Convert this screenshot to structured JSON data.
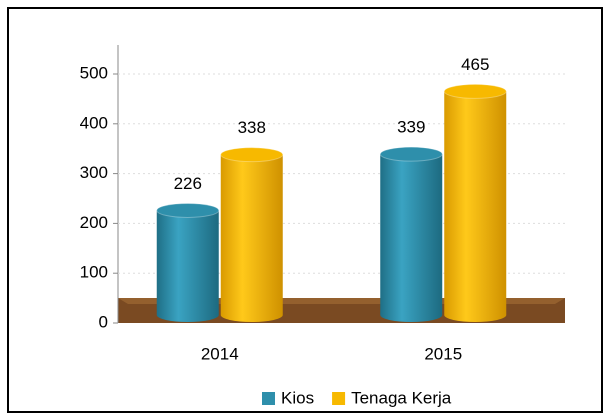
{
  "chart_data": {
    "type": "bar",
    "categories": [
      "2014",
      "2015"
    ],
    "series": [
      {
        "name": "Kios",
        "color": "#2e8fab",
        "values": [
          226,
          339
        ]
      },
      {
        "name": "Tenaga Kerja",
        "color": "#f7b900",
        "values": [
          338,
          465
        ]
      }
    ],
    "ylim": [
      0,
      500
    ],
    "yticks": [
      0,
      100,
      200,
      300,
      400,
      500
    ],
    "grid": true
  }
}
